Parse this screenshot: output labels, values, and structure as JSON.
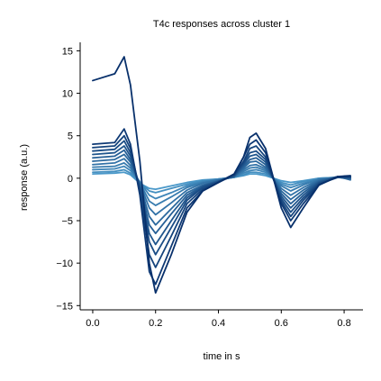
{
  "chart_data": {
    "type": "line",
    "title": "T4c responses across cluster 1",
    "xlabel": "time in s",
    "ylabel": "response (a.u.)",
    "xlim": [
      -0.04,
      0.86
    ],
    "ylim": [
      -15.5,
      16
    ],
    "xticks": [
      0.0,
      0.2,
      0.4,
      0.6,
      0.8
    ],
    "xtick_labels": [
      "0.0",
      "0.2",
      "0.4",
      "0.6",
      "0.8"
    ],
    "yticks": [
      -15,
      -10,
      -5,
      0,
      5,
      10,
      15
    ],
    "ytick_labels": [
      "−15",
      "−10",
      "−5",
      "0",
      "5",
      "10",
      "15"
    ],
    "grid": false,
    "colors": {
      "dark": "#08306b",
      "light": "#4a98c9"
    },
    "x": [
      0.0,
      0.07,
      0.1,
      0.12,
      0.15,
      0.18,
      0.2,
      0.25,
      0.3,
      0.35,
      0.4,
      0.45,
      0.48,
      0.5,
      0.52,
      0.55,
      0.6,
      0.63,
      0.67,
      0.72,
      0.78,
      0.82
    ],
    "series": [
      {
        "values": [
          11.5,
          12.3,
          14.3,
          11.0,
          2.0,
          -10.0,
          -13.5,
          -9.0,
          -4.0,
          -1.5,
          -0.5,
          0.5,
          2.5,
          4.8,
          5.3,
          3.5,
          -3.5,
          -5.8,
          -3.5,
          -0.8,
          0.2,
          0.3
        ]
      },
      {
        "values": [
          4.0,
          4.2,
          5.8,
          4.0,
          -2.0,
          -11.0,
          -12.5,
          -8.0,
          -3.5,
          -1.5,
          -0.5,
          0.5,
          2.5,
          4.0,
          4.5,
          3.0,
          -3.0,
          -5.0,
          -3.0,
          -0.8,
          0.2,
          0.2
        ]
      },
      {
        "values": [
          3.6,
          3.8,
          5.0,
          3.5,
          -1.5,
          -9.0,
          -10.5,
          -6.8,
          -3.0,
          -1.3,
          -0.5,
          0.4,
          2.0,
          3.5,
          3.8,
          2.5,
          -2.7,
          -4.5,
          -2.6,
          -0.7,
          0.1,
          0.2
        ]
      },
      {
        "values": [
          3.2,
          3.4,
          4.4,
          3.0,
          -1.2,
          -7.5,
          -9.0,
          -5.8,
          -2.6,
          -1.1,
          -0.4,
          0.3,
          1.8,
          3.0,
          3.2,
          2.2,
          -2.4,
          -4.0,
          -2.3,
          -0.6,
          0.1,
          0.1
        ]
      },
      {
        "values": [
          2.8,
          3.0,
          3.8,
          2.6,
          -1.0,
          -6.5,
          -7.8,
          -5.0,
          -2.3,
          -1.0,
          -0.4,
          0.3,
          1.6,
          2.6,
          2.8,
          1.9,
          -2.1,
          -3.5,
          -2.0,
          -0.5,
          0.2,
          0.0
        ]
      },
      {
        "values": [
          2.4,
          2.6,
          3.3,
          2.2,
          -0.8,
          -5.5,
          -6.5,
          -4.2,
          -2.0,
          -0.9,
          -0.3,
          0.2,
          1.4,
          2.2,
          2.4,
          1.6,
          -1.8,
          -3.0,
          -1.7,
          -0.4,
          0.1,
          0.0
        ]
      },
      {
        "values": [
          2.0,
          2.2,
          2.8,
          1.9,
          -0.7,
          -4.5,
          -5.5,
          -3.6,
          -1.7,
          -0.8,
          -0.3,
          0.2,
          1.2,
          1.9,
          2.0,
          1.3,
          -1.5,
          -2.5,
          -1.4,
          -0.3,
          0.2,
          -0.2
        ]
      },
      {
        "values": [
          1.6,
          1.8,
          2.3,
          1.5,
          -0.6,
          -3.5,
          -4.3,
          -2.9,
          -1.4,
          -0.6,
          -0.2,
          0.2,
          1.0,
          1.5,
          1.6,
          1.1,
          -1.2,
          -2.0,
          -1.1,
          -0.2,
          0.1,
          -0.1
        ]
      },
      {
        "values": [
          1.3,
          1.4,
          1.8,
          1.2,
          -0.5,
          -2.7,
          -3.2,
          -2.2,
          -1.1,
          -0.5,
          -0.2,
          0.1,
          0.8,
          1.2,
          1.3,
          0.9,
          -0.9,
          -1.5,
          -0.8,
          -0.1,
          0.1,
          0.0
        ]
      },
      {
        "values": [
          1.0,
          1.1,
          1.4,
          0.9,
          -0.4,
          -2.0,
          -2.4,
          -1.7,
          -0.9,
          -0.4,
          -0.1,
          0.1,
          0.6,
          0.9,
          1.0,
          0.7,
          -0.7,
          -1.1,
          -0.6,
          -0.1,
          0.1,
          0.1
        ]
      },
      {
        "values": [
          0.7,
          0.8,
          1.0,
          0.6,
          -0.5,
          -1.5,
          -1.7,
          -1.2,
          -0.7,
          -0.3,
          -0.1,
          0.1,
          0.4,
          0.7,
          0.7,
          0.5,
          -0.5,
          -0.8,
          -0.4,
          0.0,
          0.1,
          0.2
        ]
      },
      {
        "values": [
          0.5,
          0.6,
          0.7,
          0.4,
          -0.6,
          -1.2,
          -1.3,
          -0.9,
          -0.5,
          -0.2,
          -0.1,
          0.1,
          0.3,
          0.5,
          0.5,
          0.3,
          -0.3,
          -0.5,
          -0.3,
          0.0,
          0.1,
          0.1
        ]
      }
    ]
  }
}
